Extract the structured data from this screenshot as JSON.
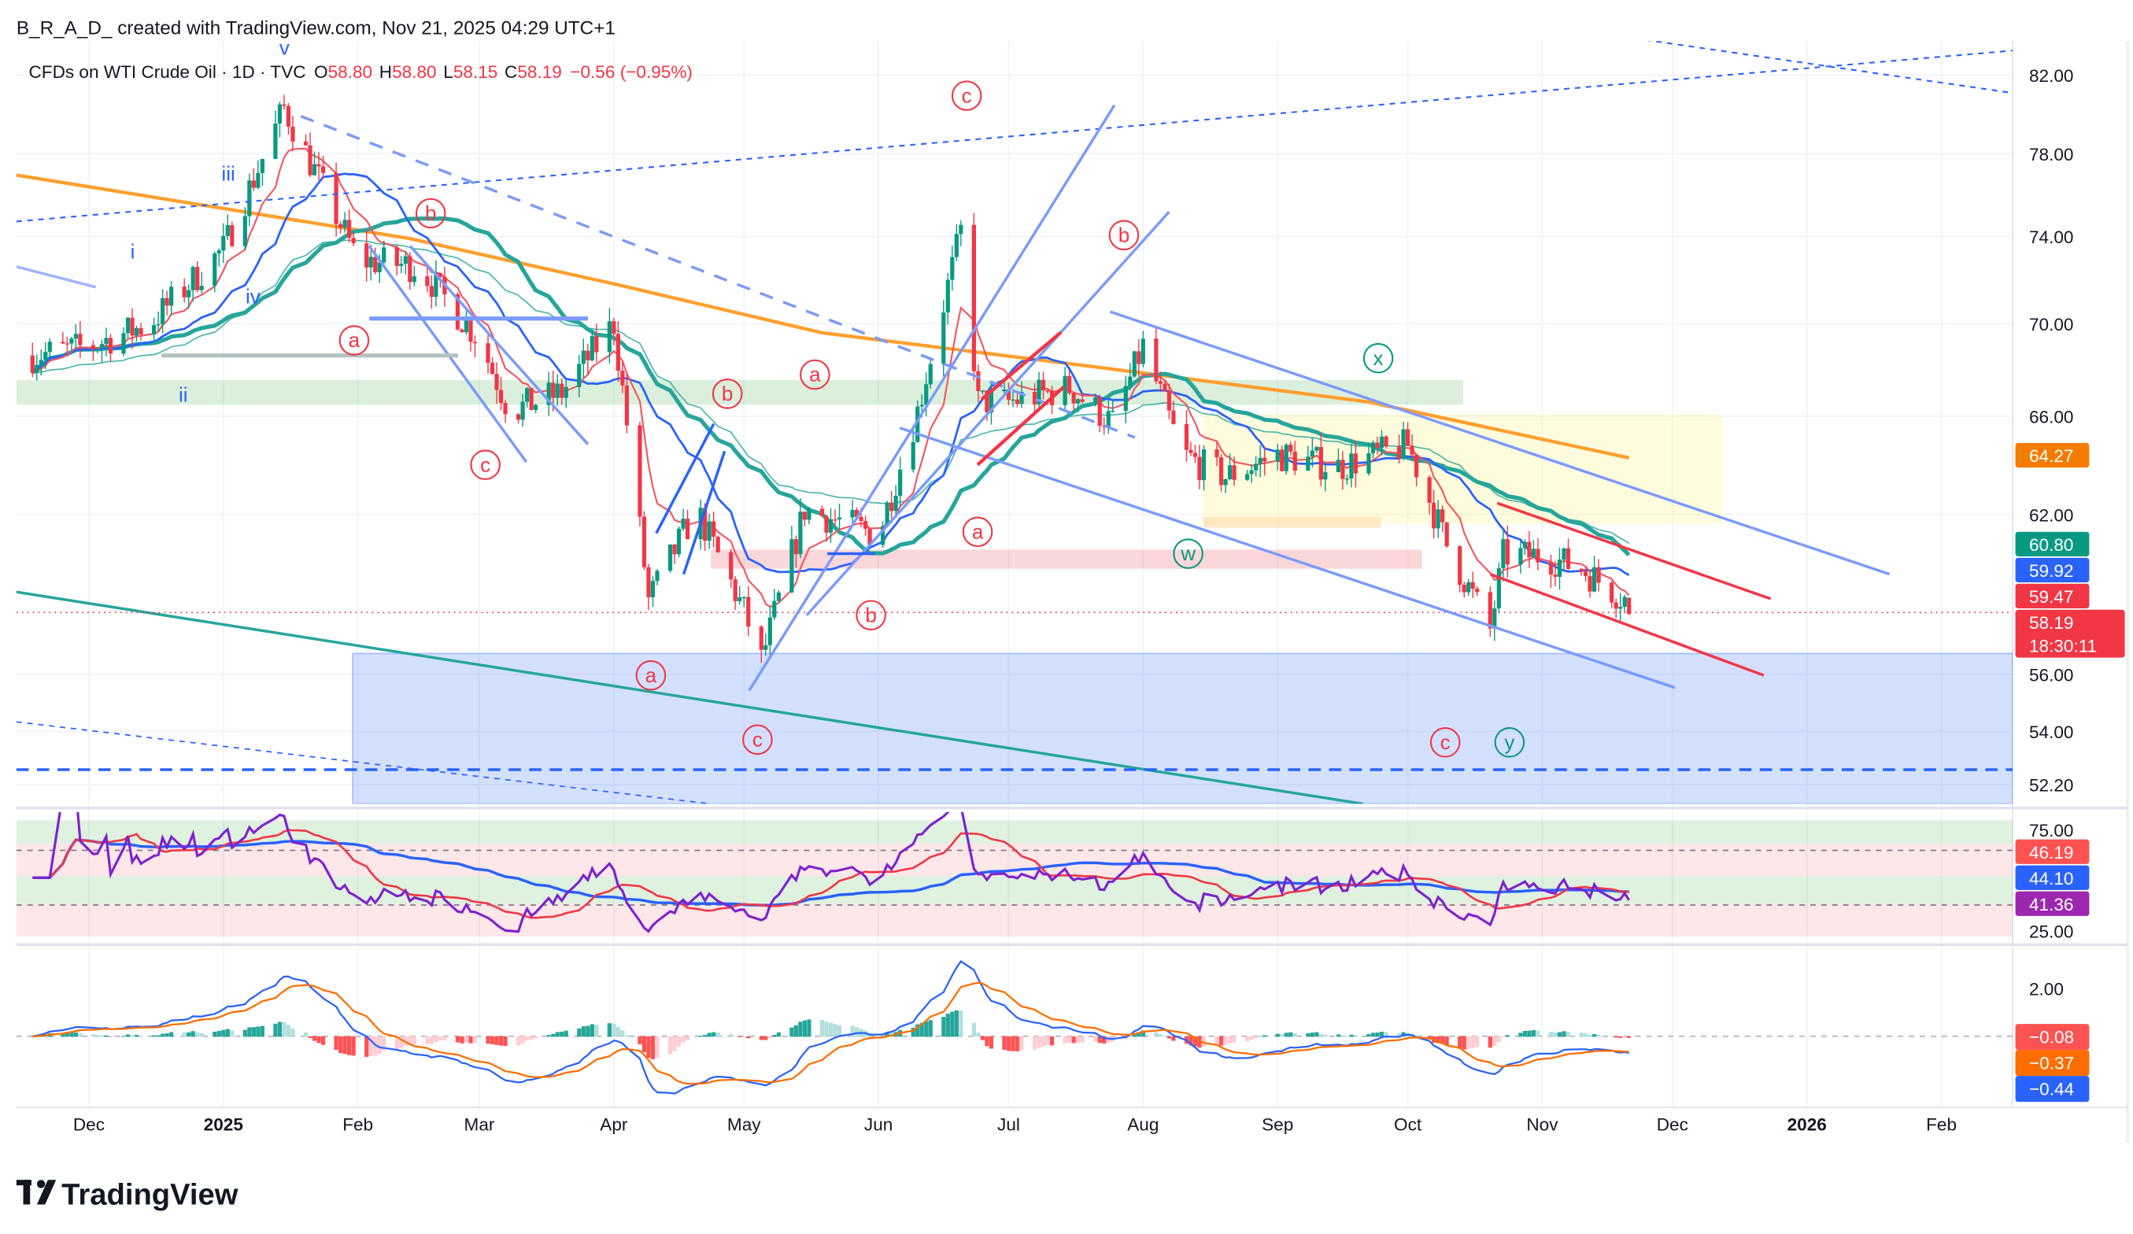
{
  "header": {
    "credit": "B_R_A_D_ created with TradingView.com, Nov 21, 2025 04:29 UTC+1",
    "symbol": "CFDs on WTI Crude Oil · 1D · TVC",
    "o_label": "O",
    "o_value": "58.80",
    "h_label": "H",
    "h_value": "58.80",
    "l_label": "L",
    "l_value": "58.15",
    "c_label": "C",
    "c_value": "58.19",
    "change": "−0.56 (−0.95%)"
  },
  "price_axis": {
    "ticks": [
      "82.00",
      "78.00",
      "74.00",
      "70.00",
      "66.00",
      "62.00",
      "56.00",
      "54.00",
      "52.20"
    ],
    "tick_values": [
      82,
      78,
      74,
      70,
      66,
      62,
      56,
      54,
      52.2
    ],
    "badges": [
      {
        "label": "64.27",
        "color": "#f57c00"
      },
      {
        "label": "60.80",
        "color": "#089981"
      },
      {
        "label": "59.92",
        "color": "#2962ff"
      },
      {
        "label": "59.47",
        "color": "#f23645"
      },
      {
        "label": "58.19",
        "color": "#f23645"
      }
    ],
    "countdown": "18:30:11"
  },
  "rsi_axis": {
    "ticks": [
      "75.00",
      "25.00"
    ],
    "badges": [
      {
        "label": "46.19",
        "color": "#ff5252"
      },
      {
        "label": "44.10",
        "color": "#2962ff"
      },
      {
        "label": "41.36",
        "color": "#9c27b0"
      }
    ]
  },
  "macd_axis": {
    "ticks": [
      "2.00"
    ],
    "badges": [
      {
        "label": "−0.08",
        "color": "#ff5252"
      },
      {
        "label": "−0.37",
        "color": "#ff6d00"
      },
      {
        "label": "−0.44",
        "color": "#2962ff"
      }
    ]
  },
  "time_axis": {
    "labels": [
      "Dec",
      "2025",
      "Feb",
      "Mar",
      "Apr",
      "May",
      "Jun",
      "Jul",
      "Aug",
      "Sep",
      "Oct",
      "Nov",
      "Dec",
      "2026",
      "Feb"
    ],
    "dates": [
      "2024-12-01",
      "2025-01-01",
      "2025-02-01",
      "2025-03-01",
      "2025-04-01",
      "2025-05-01",
      "2025-06-01",
      "2025-07-01",
      "2025-08-01",
      "2025-09-01",
      "2025-10-01",
      "2025-11-01",
      "2025-12-01",
      "2026-01-01",
      "2026-02-01"
    ],
    "bold": [
      false,
      true,
      false,
      false,
      false,
      false,
      false,
      false,
      false,
      false,
      false,
      false,
      false,
      true,
      false
    ]
  },
  "wave_labels": {
    "red": [
      "c",
      "b",
      "b",
      "a",
      "a",
      "b",
      "c",
      "a",
      "b",
      "a",
      "c",
      "c"
    ],
    "green": [
      "x",
      "w",
      "y"
    ],
    "blue": [
      "v",
      "iii",
      "i",
      "iv",
      "ii"
    ]
  },
  "logo": {
    "text": "TradingView"
  },
  "colors": {
    "up": "#089981",
    "down": "#f23645",
    "ma200": "#ff9f2e",
    "ma_fast": "#f7525f",
    "ma_mid": "#2962ff",
    "ma_slow": "#26a69a"
  },
  "chart_data": {
    "type": "candlestick",
    "title": "CFDs on WTI Crude Oil · 1D · TVC",
    "y_scale": "log",
    "ylim": [
      52.2,
      83
    ],
    "last_bar": {
      "date": "2025-11-21",
      "open": 58.8,
      "high": 58.8,
      "low": 58.15,
      "close": 58.19
    },
    "close_keypoints": [
      [
        "2024-11-18",
        68.6
      ],
      [
        "2024-12-01",
        69.0
      ],
      [
        "2024-12-15",
        70.0
      ],
      [
        "2025-01-01",
        73.4
      ],
      [
        "2025-01-15",
        80.3
      ],
      [
        "2025-02-01",
        72.9
      ],
      [
        "2025-02-15",
        72.6
      ],
      [
        "2025-03-01",
        69.3
      ],
      [
        "2025-03-08",
        66.2
      ],
      [
        "2025-03-20",
        67.0
      ],
      [
        "2025-04-01",
        70.0
      ],
      [
        "2025-04-04",
        65.7
      ],
      [
        "2025-04-09",
        58.7
      ],
      [
        "2025-04-20",
        62.2
      ],
      [
        "2025-05-01",
        58.3
      ],
      [
        "2025-05-05",
        56.5
      ],
      [
        "2025-05-15",
        62.2
      ],
      [
        "2025-06-01",
        61.2
      ],
      [
        "2025-06-10",
        66.2
      ],
      [
        "2025-06-20",
        74.2
      ],
      [
        "2025-06-24",
        66.6
      ],
      [
        "2025-07-01",
        66.6
      ],
      [
        "2025-07-15",
        67.2
      ],
      [
        "2025-07-25",
        65.7
      ],
      [
        "2025-08-01",
        69.0
      ],
      [
        "2025-08-10",
        64.4
      ],
      [
        "2025-08-20",
        63.5
      ],
      [
        "2025-09-01",
        64.4
      ],
      [
        "2025-09-15",
        63.9
      ],
      [
        "2025-10-01",
        64.8
      ],
      [
        "2025-10-10",
        60.8
      ],
      [
        "2025-10-20",
        57.6
      ],
      [
        "2025-10-23",
        60.4
      ],
      [
        "2025-11-01",
        60.4
      ],
      [
        "2025-11-10",
        59.9
      ],
      [
        "2025-11-20",
        58.75
      ],
      [
        "2025-11-21",
        58.19
      ]
    ],
    "ma200_keypoints": [
      [
        "2024-11-14",
        76.96
      ],
      [
        "2025-02-13",
        73.9
      ],
      [
        "2025-04-01",
        71.8
      ],
      [
        "2025-05-19",
        69.6
      ],
      [
        "2025-07-21",
        68.1
      ],
      [
        "2025-09-22",
        66.6
      ],
      [
        "2025-11-21",
        64.27
      ]
    ],
    "indicators": {
      "ma_values": {
        "ma200": 64.27,
        "ma50": 60.8,
        "ma20": 59.92,
        "ma_fast": 59.47
      },
      "rsi": {
        "rsi": 41.36,
        "rsi_ma": 46.19,
        "rsi_slow": 44.1,
        "levels": [
          75,
          25
        ]
      },
      "macd": {
        "histogram": -0.08,
        "signal": -0.37,
        "macd": -0.44
      }
    }
  }
}
